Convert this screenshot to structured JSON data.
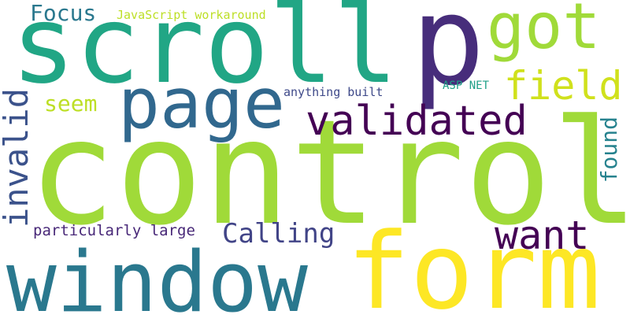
{
  "words": [
    {
      "text": "control",
      "color": "#a0da39"
    },
    {
      "text": "scroll",
      "color": "#21a685"
    },
    {
      "text": "window",
      "color": "#2a788e"
    },
    {
      "text": "form",
      "color": "#fde725"
    },
    {
      "text": "p",
      "color": "#472d7b"
    },
    {
      "text": "page",
      "color": "#31688e"
    },
    {
      "text": "got",
      "color": "#a0da39"
    },
    {
      "text": "validated",
      "color": "#440154"
    },
    {
      "text": "field",
      "color": "#d0e11c"
    },
    {
      "text": "want",
      "color": "#440154"
    },
    {
      "text": "invalid",
      "color": "#3b528b"
    },
    {
      "text": "Calling",
      "color": "#414487"
    },
    {
      "text": "Focus",
      "color": "#2a788e"
    },
    {
      "text": "seem",
      "color": "#bddf26"
    },
    {
      "text": "found",
      "color": "#26828e"
    },
    {
      "text": "particularly large",
      "color": "#482878"
    },
    {
      "text": "JavaScript workaround",
      "color": "#bddf26"
    },
    {
      "text": "anything built",
      "color": "#3e4989"
    },
    {
      "text": "ASP NET",
      "color": "#1fa088"
    }
  ]
}
